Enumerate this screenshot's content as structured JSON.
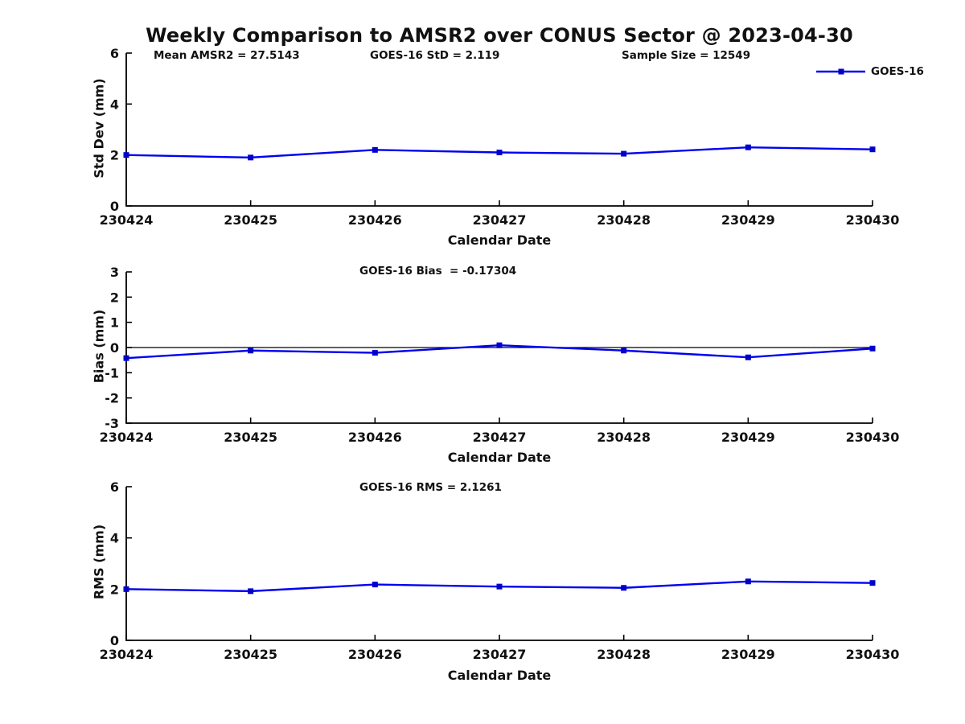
{
  "title": "Weekly Comparison to AMSR2 over CONUS Sector @ 2023-04-30",
  "legend": {
    "label": "GOES-16",
    "position": "top-right",
    "line_color": "#0000f0",
    "marker_color": "#0000cd"
  },
  "chart_data": [
    {
      "type": "line",
      "id": "std-dev",
      "ylabel": "Std Dev (mm)",
      "xlabel": "Calendar Date",
      "categories": [
        "230424",
        "230425",
        "230426",
        "230427",
        "230428",
        "230429",
        "230430"
      ],
      "series": [
        {
          "name": "GOES-16",
          "values": [
            2.0,
            1.9,
            2.2,
            2.1,
            2.05,
            2.3,
            2.22
          ]
        }
      ],
      "ylim": [
        0,
        6
      ],
      "yticks": [
        0,
        2,
        4,
        6
      ],
      "grid": false,
      "marker": "square",
      "line_color": "#0000f0",
      "marker_color": "#0000cd",
      "annotations": [
        {
          "text": "Mean AMSR2 = 27.5143"
        },
        {
          "text": "GOES-16 StD = 2.119"
        },
        {
          "text": "Sample Size = 12549"
        }
      ]
    },
    {
      "type": "line",
      "id": "bias",
      "ylabel": "Bias (mm)",
      "xlabel": "Calendar Date",
      "categories": [
        "230424",
        "230425",
        "230426",
        "230427",
        "230428",
        "230429",
        "230430"
      ],
      "series": [
        {
          "name": "GOES-16",
          "values": [
            -0.42,
            -0.12,
            -0.21,
            0.09,
            -0.12,
            -0.39,
            -0.04
          ]
        }
      ],
      "ylim": [
        -3,
        3
      ],
      "yticks": [
        -3,
        -2,
        -1,
        0,
        1,
        2,
        3
      ],
      "zero_line": true,
      "grid": false,
      "marker": "square",
      "line_color": "#0000f0",
      "marker_color": "#0000cd",
      "annotations": [
        {
          "text": "GOES-16 Bias  = -0.17304"
        }
      ]
    },
    {
      "type": "line",
      "id": "rms",
      "ylabel": "RMS (mm)",
      "xlabel": "Calendar Date",
      "categories": [
        "230424",
        "230425",
        "230426",
        "230427",
        "230428",
        "230429",
        "230430"
      ],
      "series": [
        {
          "name": "GOES-16",
          "values": [
            2.0,
            1.92,
            2.18,
            2.1,
            2.05,
            2.3,
            2.24
          ]
        }
      ],
      "ylim": [
        0,
        6
      ],
      "yticks": [
        0,
        2,
        4,
        6
      ],
      "grid": false,
      "marker": "square",
      "line_color": "#0000f0",
      "marker_color": "#0000cd",
      "annotations": [
        {
          "text": "GOES-16 RMS = 2.1261"
        }
      ]
    }
  ]
}
